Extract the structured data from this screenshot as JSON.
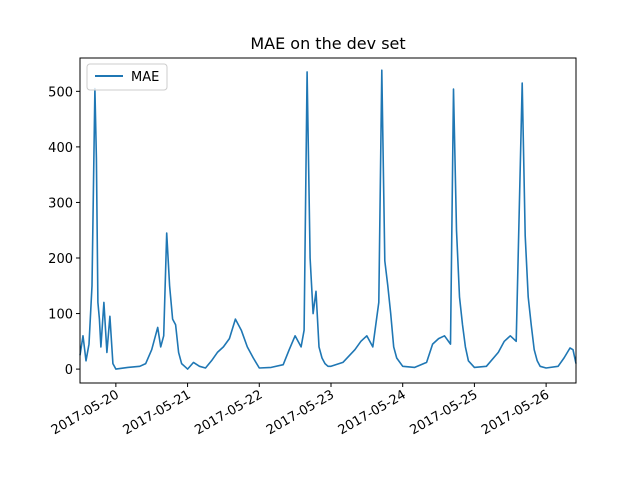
{
  "chart_data": {
    "type": "line",
    "title": "MAE on the dev set",
    "xlabel": "",
    "ylabel": "",
    "legend": {
      "placement": "top-left",
      "entries": [
        "MAE"
      ]
    },
    "grid": false,
    "series_color": "#1f77b4",
    "xlim": [
      "2017-05-19 12:00",
      "2017-05-26 10:00"
    ],
    "ylim": [
      -25,
      560
    ],
    "x_ticks": [
      "2017-05-20",
      "2017-05-21",
      "2017-05-22",
      "2017-05-23",
      "2017-05-24",
      "2017-05-25",
      "2017-05-26"
    ],
    "y_ticks": [
      0,
      100,
      200,
      300,
      400,
      500
    ],
    "series": [
      {
        "name": "MAE",
        "x": [
          "2017-05-19 12:00",
          "2017-05-19 13:00",
          "2017-05-19 14:00",
          "2017-05-19 15:00",
          "2017-05-19 16:00",
          "2017-05-19 17:00",
          "2017-05-19 17:30",
          "2017-05-19 18:00",
          "2017-05-19 18:30",
          "2017-05-19 19:00",
          "2017-05-19 20:00",
          "2017-05-19 21:00",
          "2017-05-19 22:00",
          "2017-05-19 23:00",
          "2017-05-20 00:00",
          "2017-05-20 04:00",
          "2017-05-20 08:00",
          "2017-05-20 10:00",
          "2017-05-20 12:00",
          "2017-05-20 14:00",
          "2017-05-20 15:00",
          "2017-05-20 16:00",
          "2017-05-20 17:00",
          "2017-05-20 18:00",
          "2017-05-20 19:00",
          "2017-05-20 20:00",
          "2017-05-20 21:00",
          "2017-05-20 22:00",
          "2017-05-20 23:00",
          "2017-05-21 00:00",
          "2017-05-21 02:00",
          "2017-05-21 04:00",
          "2017-05-21 06:00",
          "2017-05-21 08:00",
          "2017-05-21 10:00",
          "2017-05-21 12:00",
          "2017-05-21 14:00",
          "2017-05-21 16:00",
          "2017-05-21 18:00",
          "2017-05-21 20:00",
          "2017-05-21 22:00",
          "2017-05-22 00:00",
          "2017-05-22 04:00",
          "2017-05-22 08:00",
          "2017-05-22 10:00",
          "2017-05-22 12:00",
          "2017-05-22 14:00",
          "2017-05-22 15:00",
          "2017-05-22 16:00",
          "2017-05-22 17:00",
          "2017-05-22 18:00",
          "2017-05-22 19:00",
          "2017-05-22 20:00",
          "2017-05-22 21:00",
          "2017-05-22 22:00",
          "2017-05-22 23:00",
          "2017-05-23 00:00",
          "2017-05-23 04:00",
          "2017-05-23 08:00",
          "2017-05-23 10:00",
          "2017-05-23 12:00",
          "2017-05-23 14:00",
          "2017-05-23 16:00",
          "2017-05-23 17:00",
          "2017-05-23 18:00",
          "2017-05-23 19:00",
          "2017-05-23 20:00",
          "2017-05-23 21:00",
          "2017-05-23 22:00",
          "2017-05-24 00:00",
          "2017-05-24 04:00",
          "2017-05-24 08:00",
          "2017-05-24 10:00",
          "2017-05-24 12:00",
          "2017-05-24 14:00",
          "2017-05-24 16:00",
          "2017-05-24 17:00",
          "2017-05-24 18:00",
          "2017-05-24 19:00",
          "2017-05-24 20:00",
          "2017-05-24 21:00",
          "2017-05-24 22:00",
          "2017-05-25 00:00",
          "2017-05-25 04:00",
          "2017-05-25 08:00",
          "2017-05-25 10:00",
          "2017-05-25 12:00",
          "2017-05-25 14:00",
          "2017-05-25 16:00",
          "2017-05-25 17:00",
          "2017-05-25 18:00",
          "2017-05-25 19:00",
          "2017-05-25 20:00",
          "2017-05-25 21:00",
          "2017-05-25 22:00",
          "2017-05-26 00:00",
          "2017-05-26 04:00",
          "2017-05-26 06:00",
          "2017-05-26 08:00",
          "2017-05-26 09:00",
          "2017-05-26 10:00"
        ],
        "values": [
          25,
          60,
          15,
          45,
          150,
          505,
          380,
          120,
          90,
          40,
          120,
          30,
          95,
          10,
          0,
          3,
          5,
          10,
          35,
          75,
          40,
          60,
          245,
          150,
          90,
          80,
          30,
          10,
          5,
          0,
          12,
          5,
          2,
          15,
          30,
          40,
          55,
          90,
          70,
          40,
          20,
          2,
          3,
          8,
          35,
          60,
          40,
          70,
          535,
          200,
          100,
          140,
          40,
          20,
          10,
          5,
          5,
          12,
          35,
          50,
          60,
          40,
          120,
          538,
          195,
          150,
          100,
          40,
          20,
          5,
          3,
          12,
          45,
          55,
          60,
          45,
          504,
          250,
          130,
          80,
          40,
          15,
          3,
          5,
          30,
          50,
          60,
          50,
          515,
          240,
          130,
          80,
          35,
          15,
          5,
          2,
          5,
          20,
          38,
          35,
          10
        ]
      }
    ]
  }
}
